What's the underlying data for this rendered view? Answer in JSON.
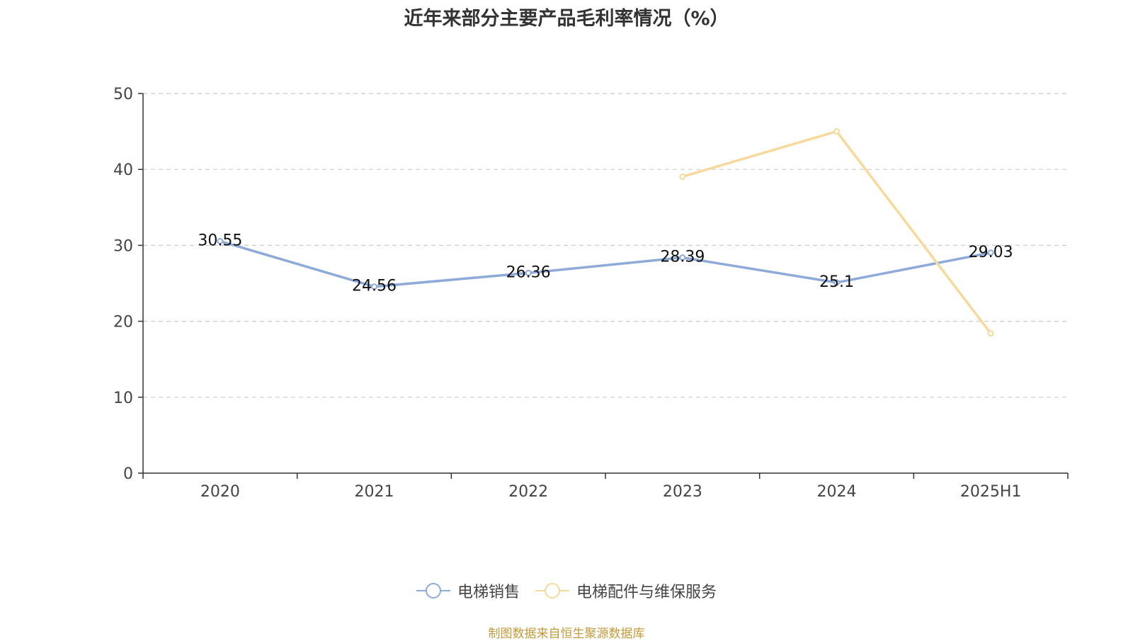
{
  "chart_data": {
    "type": "line",
    "title": "近年来部分主要产品毛利率情况（%）",
    "categories": [
      "2020",
      "2021",
      "2022",
      "2023",
      "2024",
      "2025H1"
    ],
    "series": [
      {
        "name": "电梯销售",
        "color": "#8eaad8",
        "values": [
          30.55,
          24.56,
          26.36,
          28.39,
          25.1,
          29.03
        ],
        "labels": [
          "30.55",
          "24.56",
          "26.36",
          "28.39",
          "25.1",
          "29.03"
        ]
      },
      {
        "name": "电梯配件与维保服务",
        "color": "#f7d99b",
        "values": [
          null,
          null,
          null,
          39.05,
          45.0,
          18.4
        ]
      }
    ],
    "ylim": [
      0,
      50
    ],
    "yticks": [
      "0",
      "10",
      "20",
      "30",
      "40",
      "50"
    ],
    "grid": true,
    "legend_position": "bottom-center",
    "source": "制图数据来自恒生聚源数据库"
  }
}
